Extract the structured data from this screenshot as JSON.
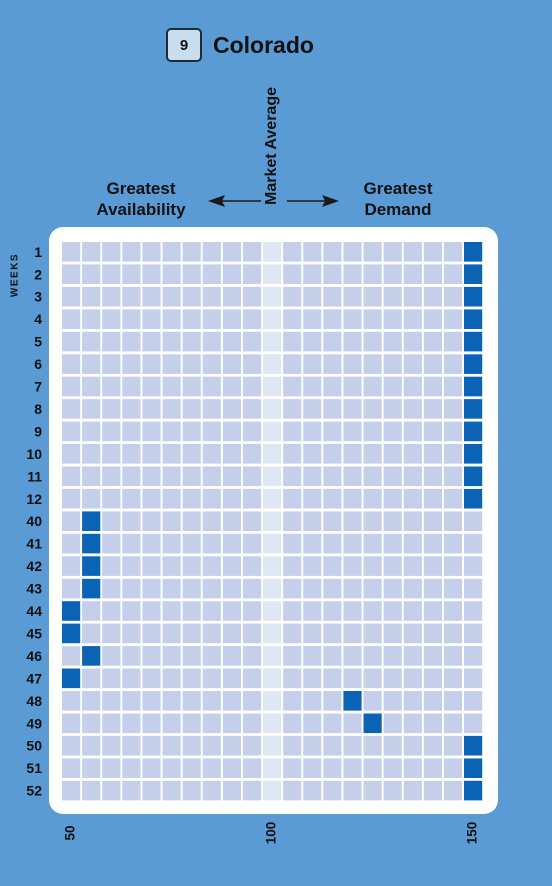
{
  "header": {
    "region_number": "9",
    "region_name": "Colorado",
    "left_label_line1": "Greatest",
    "left_label_line2": "Availability",
    "right_label_line1": "Greatest",
    "right_label_line2": "Demand",
    "center_label": "Market Average",
    "y_axis_label": "WEEKS"
  },
  "colors": {
    "background": "#5b9bd5",
    "cell": "#c5cfea",
    "center_cell": "#dfe6f4",
    "filled_cell": "#0b63b5",
    "panel": "#ffffff",
    "arrow": "#1a1a1a"
  },
  "chart_data": {
    "type": "heatmap",
    "x_ticks": [
      50,
      100,
      150
    ],
    "x_range": [
      50,
      150
    ],
    "x_step": 5,
    "rows": [
      {
        "week": "1",
        "value": 150
      },
      {
        "week": "2",
        "value": 150
      },
      {
        "week": "3",
        "value": 150
      },
      {
        "week": "4",
        "value": 150
      },
      {
        "week": "5",
        "value": 150
      },
      {
        "week": "6",
        "value": 150
      },
      {
        "week": "7",
        "value": 150
      },
      {
        "week": "8",
        "value": 150
      },
      {
        "week": "9",
        "value": 150
      },
      {
        "week": "10",
        "value": 150
      },
      {
        "week": "11",
        "value": 150
      },
      {
        "week": "12",
        "value": 150
      },
      {
        "week": "40",
        "value": 55
      },
      {
        "week": "41",
        "value": 55
      },
      {
        "week": "42",
        "value": 55
      },
      {
        "week": "43",
        "value": 55
      },
      {
        "week": "44",
        "value": 50
      },
      {
        "week": "45",
        "value": 50
      },
      {
        "week": "46",
        "value": 55
      },
      {
        "week": "47",
        "value": 50
      },
      {
        "week": "48",
        "value": 120
      },
      {
        "week": "49",
        "value": 125
      },
      {
        "week": "50",
        "value": 150
      },
      {
        "week": "51",
        "value": 150
      },
      {
        "week": "52",
        "value": 150
      }
    ]
  }
}
